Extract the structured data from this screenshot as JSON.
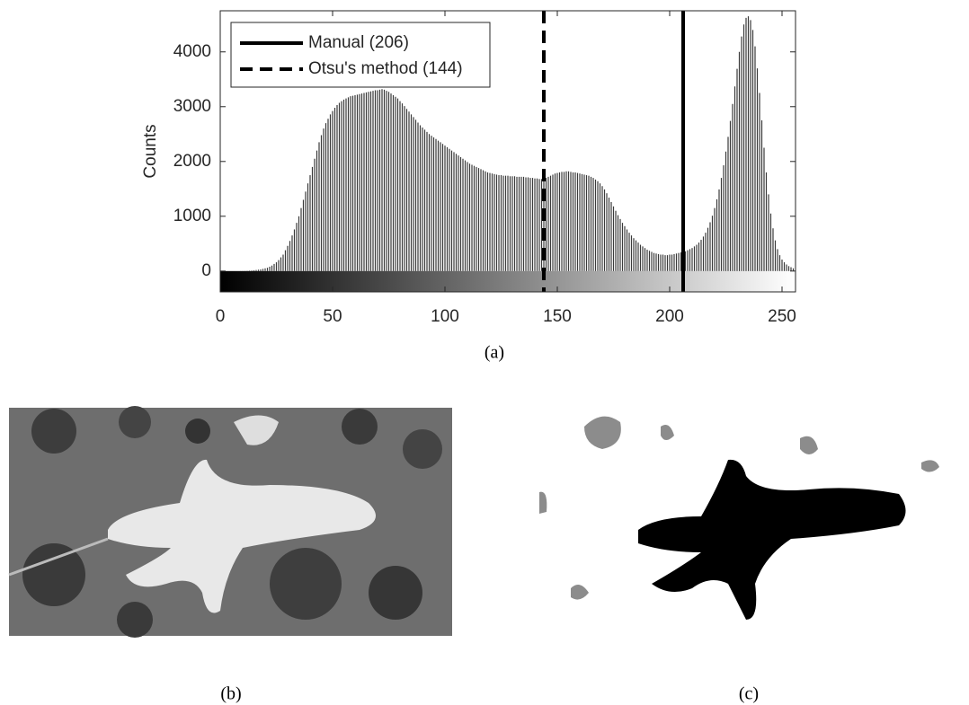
{
  "chart_data": {
    "type": "histogram",
    "y_label": "Counts",
    "x": [
      0,
      1,
      2,
      3,
      4,
      5,
      6,
      7,
      8,
      9,
      10,
      11,
      12,
      13,
      14,
      15,
      16,
      17,
      18,
      19,
      20,
      21,
      22,
      23,
      24,
      25,
      26,
      27,
      28,
      29,
      30,
      31,
      32,
      33,
      34,
      35,
      36,
      37,
      38,
      39,
      40,
      41,
      42,
      43,
      44,
      45,
      46,
      47,
      48,
      49,
      50,
      51,
      52,
      53,
      54,
      55,
      56,
      57,
      58,
      59,
      60,
      61,
      62,
      63,
      64,
      65,
      66,
      67,
      68,
      69,
      70,
      71,
      72,
      73,
      74,
      75,
      76,
      77,
      78,
      79,
      80,
      81,
      82,
      83,
      84,
      85,
      86,
      87,
      88,
      89,
      90,
      91,
      92,
      93,
      94,
      95,
      96,
      97,
      98,
      99,
      100,
      101,
      102,
      103,
      104,
      105,
      106,
      107,
      108,
      109,
      110,
      111,
      112,
      113,
      114,
      115,
      116,
      117,
      118,
      119,
      120,
      121,
      122,
      123,
      124,
      125,
      126,
      127,
      128,
      129,
      130,
      131,
      132,
      133,
      134,
      135,
      136,
      137,
      138,
      139,
      140,
      141,
      142,
      143,
      144,
      145,
      146,
      147,
      148,
      149,
      150,
      151,
      152,
      153,
      154,
      155,
      156,
      157,
      158,
      159,
      160,
      161,
      162,
      163,
      164,
      165,
      166,
      167,
      168,
      169,
      170,
      171,
      172,
      173,
      174,
      175,
      176,
      177,
      178,
      179,
      180,
      181,
      182,
      183,
      184,
      185,
      186,
      187,
      188,
      189,
      190,
      191,
      192,
      193,
      194,
      195,
      196,
      197,
      198,
      199,
      200,
      201,
      202,
      203,
      204,
      205,
      206,
      207,
      208,
      209,
      210,
      211,
      212,
      213,
      214,
      215,
      216,
      217,
      218,
      219,
      220,
      221,
      222,
      223,
      224,
      225,
      226,
      227,
      228,
      229,
      230,
      231,
      232,
      233,
      234,
      235,
      236,
      237,
      238,
      239,
      240,
      241,
      242,
      243,
      244,
      245,
      246,
      247,
      248,
      249,
      250,
      251,
      252,
      253,
      254,
      255
    ],
    "values": [
      0,
      0,
      0,
      0,
      0,
      0,
      0,
      0,
      0,
      1,
      2,
      3,
      5,
      8,
      10,
      15,
      20,
      25,
      30,
      40,
      50,
      60,
      80,
      100,
      130,
      160,
      200,
      250,
      300,
      380,
      460,
      550,
      650,
      760,
      880,
      1000,
      1150,
      1300,
      1450,
      1600,
      1750,
      1900,
      2050,
      2200,
      2350,
      2480,
      2600,
      2700,
      2780,
      2860,
      2920,
      2980,
      3030,
      3070,
      3100,
      3130,
      3150,
      3170,
      3190,
      3200,
      3210,
      3220,
      3230,
      3240,
      3250,
      3260,
      3270,
      3280,
      3290,
      3300,
      3300,
      3310,
      3320,
      3310,
      3290,
      3270,
      3240,
      3210,
      3180,
      3150,
      3100,
      3060,
      3010,
      2960,
      2910,
      2860,
      2810,
      2760,
      2710,
      2660,
      2620,
      2580,
      2540,
      2500,
      2470,
      2440,
      2410,
      2380,
      2350,
      2320,
      2290,
      2260,
      2230,
      2200,
      2170,
      2140,
      2110,
      2080,
      2050,
      2020,
      1990,
      1960,
      1940,
      1920,
      1900,
      1880,
      1860,
      1840,
      1820,
      1800,
      1790,
      1780,
      1770,
      1760,
      1750,
      1750,
      1740,
      1740,
      1740,
      1730,
      1730,
      1730,
      1720,
      1720,
      1720,
      1720,
      1710,
      1710,
      1700,
      1700,
      1690,
      1690,
      1680,
      1680,
      1690,
      1700,
      1720,
      1740,
      1760,
      1780,
      1790,
      1800,
      1810,
      1810,
      1820,
      1820,
      1810,
      1800,
      1800,
      1790,
      1780,
      1770,
      1760,
      1750,
      1740,
      1720,
      1700,
      1670,
      1640,
      1600,
      1550,
      1490,
      1420,
      1340,
      1260,
      1180,
      1100,
      1020,
      950,
      880,
      820,
      760,
      700,
      650,
      600,
      560,
      520,
      480,
      450,
      420,
      390,
      370,
      350,
      330,
      320,
      310,
      300,
      300,
      290,
      290,
      300,
      300,
      310,
      320,
      330,
      340,
      350,
      360,
      380,
      400,
      420,
      450,
      480,
      520,
      570,
      630,
      700,
      790,
      890,
      1010,
      1150,
      1310,
      1490,
      1700,
      1930,
      2180,
      2450,
      2740,
      3050,
      3370,
      3690,
      4000,
      4280,
      4500,
      4620,
      4650,
      4580,
      4400,
      4100,
      3700,
      3250,
      2750,
      2250,
      1800,
      1400,
      1050,
      780,
      560,
      400,
      290,
      210,
      160,
      120,
      90,
      70,
      50
    ],
    "color": "#3a3a3a",
    "xlim": [
      0,
      256
    ],
    "ylim": [
      -380,
      4750
    ],
    "xticks": [
      0,
      50,
      100,
      150,
      200,
      250
    ],
    "yticks": [
      0,
      1000,
      2000,
      3000,
      4000
    ],
    "thresholds": [
      {
        "name": "Manual (206)",
        "value": 206,
        "dash": "solid"
      },
      {
        "name": "Otsu's method (144)",
        "value": 144,
        "dash": "dashed"
      }
    ],
    "colorbar": true
  },
  "captions": [
    "(a)",
    "(b)",
    "(c)"
  ]
}
